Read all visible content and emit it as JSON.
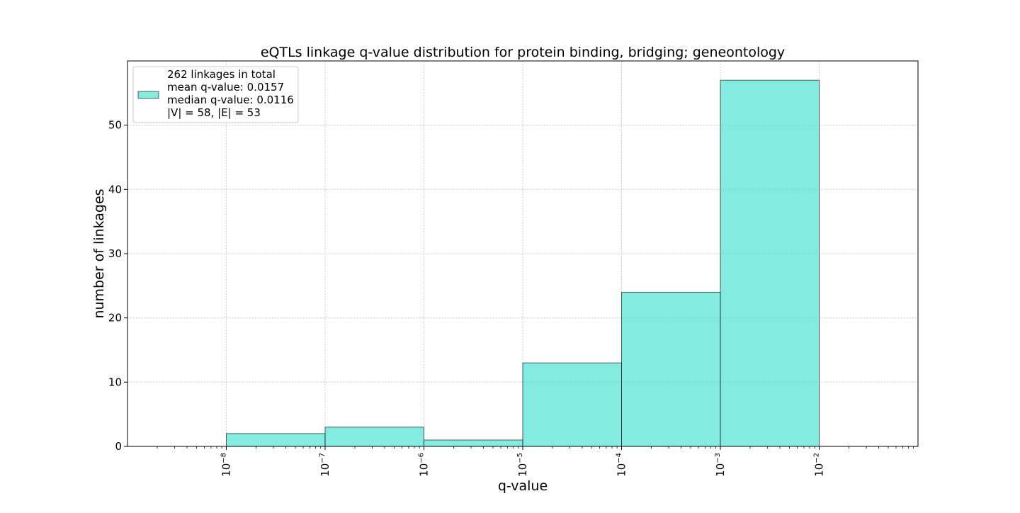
{
  "chart_data": {
    "type": "bar",
    "title": "eQTLs linkage q-value distribution for protein binding, bridging; geneontology",
    "xlabel": "q-value",
    "ylabel": "number of linkages",
    "xscale": "log",
    "xlim": [
      1e-09,
      0.1
    ],
    "ylim": [
      0,
      60
    ],
    "grid": true,
    "legend_position": "top-left",
    "bin_edges": [
      1e-08,
      1e-07,
      1e-06,
      1e-05,
      0.0001,
      0.001,
      0.01
    ],
    "values": [
      2,
      3,
      1,
      13,
      24,
      57
    ],
    "bar_color": "#40e0d0",
    "bar_edge_color": "#000000",
    "x_ticks": [
      {
        "value": 1e-08,
        "base": "10",
        "exp": "−8"
      },
      {
        "value": 1e-07,
        "base": "10",
        "exp": "−7"
      },
      {
        "value": 1e-06,
        "base": "10",
        "exp": "−6"
      },
      {
        "value": 1e-05,
        "base": "10",
        "exp": "−5"
      },
      {
        "value": 0.0001,
        "base": "10",
        "exp": "−4"
      },
      {
        "value": 0.001,
        "base": "10",
        "exp": "−3"
      },
      {
        "value": 0.01,
        "base": "10",
        "exp": "−2"
      }
    ],
    "y_ticks": [
      0,
      10,
      20,
      30,
      40,
      50
    ],
    "legend": {
      "lines": [
        "262 linkages in total",
        "mean q-value: 0.0157",
        "median q-value: 0.0116",
        "|V| = 58, |E| = 53"
      ]
    }
  }
}
